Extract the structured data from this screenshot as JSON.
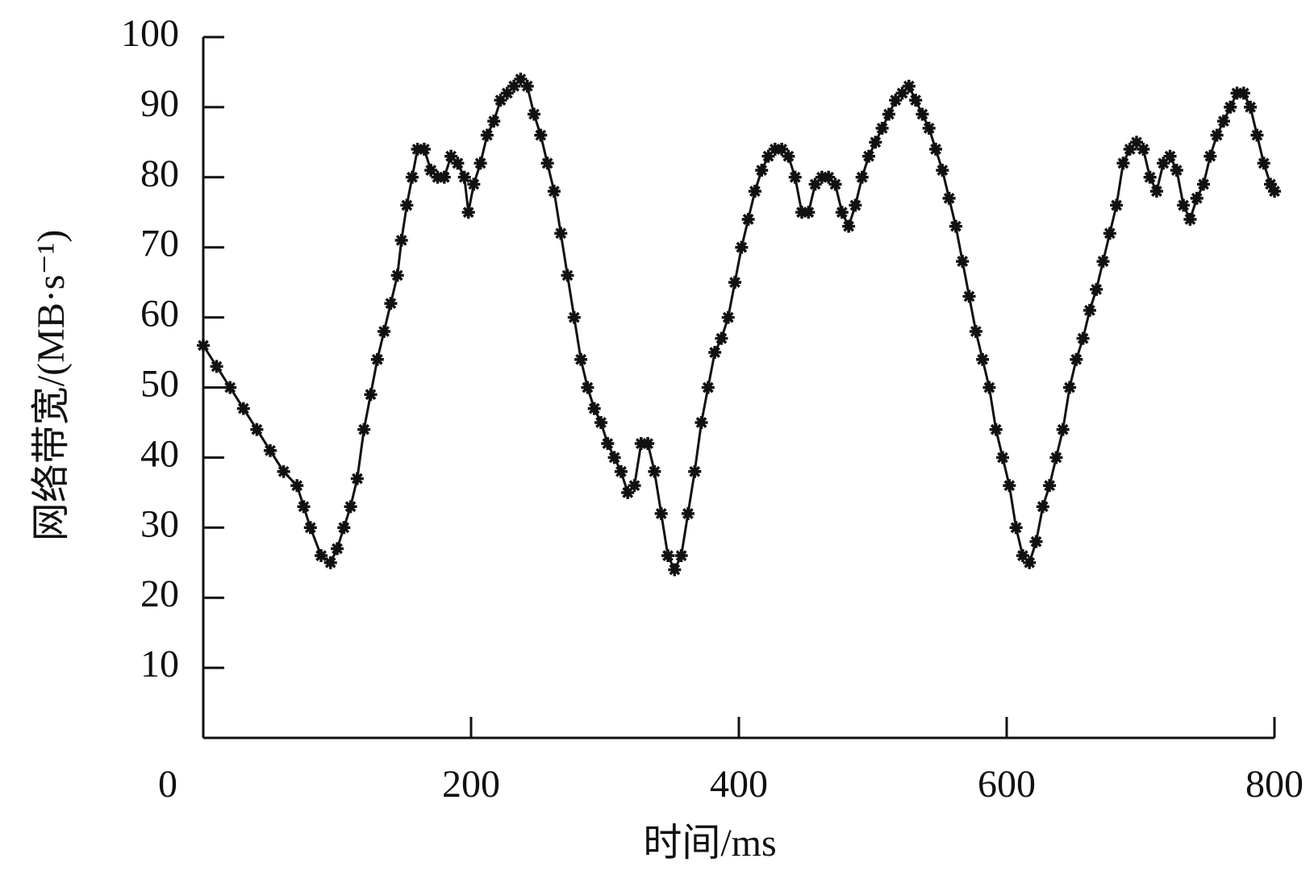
{
  "chart_data": {
    "type": "line",
    "x_label": "时间/ms",
    "y_label": "网络带宽/(MB·s⁻¹)",
    "x": [
      0,
      10,
      20,
      30,
      40,
      50,
      60,
      70,
      75,
      80,
      88,
      95,
      100,
      105,
      110,
      115,
      120,
      125,
      130,
      135,
      140,
      145,
      148,
      152,
      156,
      160,
      165,
      170,
      175,
      180,
      185,
      190,
      195,
      198,
      202,
      207,
      212,
      217,
      222,
      227,
      232,
      237,
      242,
      247,
      252,
      257,
      262,
      267,
      272,
      277,
      282,
      287,
      292,
      297,
      302,
      307,
      312,
      317,
      322,
      327,
      332,
      337,
      342,
      347,
      352,
      357,
      362,
      367,
      372,
      377,
      382,
      387,
      392,
      397,
      402,
      407,
      412,
      417,
      422,
      427,
      432,
      437,
      442,
      447,
      452,
      457,
      462,
      467,
      472,
      477,
      482,
      487,
      492,
      497,
      502,
      507,
      512,
      517,
      522,
      527,
      532,
      537,
      542,
      547,
      552,
      557,
      562,
      567,
      572,
      577,
      582,
      587,
      592,
      597,
      602,
      607,
      612,
      617,
      622,
      627,
      632,
      637,
      642,
      647,
      652,
      657,
      662,
      667,
      672,
      677,
      682,
      687,
      692,
      697,
      702,
      707,
      712,
      717,
      722,
      727,
      732,
      737,
      742,
      747,
      752,
      757,
      762,
      767,
      772,
      777,
      782,
      787,
      792,
      797,
      800
    ],
    "series": [
      {
        "color": "#111111",
        "values": [
          56,
          53,
          50,
          47,
          44,
          41,
          38,
          36,
          33,
          30,
          26,
          25,
          27,
          30,
          33,
          37,
          44,
          49,
          54,
          58,
          62,
          66,
          71,
          76,
          80,
          84,
          84,
          81,
          80,
          80,
          83,
          82,
          80,
          75,
          79,
          82,
          86,
          88,
          91,
          92,
          93,
          94,
          93,
          89,
          86,
          82,
          78,
          72,
          66,
          60,
          54,
          50,
          47,
          45,
          42,
          40,
          38,
          35,
          36,
          42,
          42,
          38,
          32,
          26,
          24,
          26,
          32,
          38,
          45,
          50,
          55,
          57,
          60,
          65,
          70,
          74,
          78,
          81,
          83,
          84,
          84,
          83,
          80,
          75,
          75,
          79,
          80,
          80,
          79,
          75,
          73,
          76,
          80,
          83,
          85,
          87,
          89,
          91,
          92,
          93,
          91,
          89,
          87,
          84,
          81,
          77,
          73,
          68,
          63,
          58,
          54,
          50,
          44,
          40,
          36,
          30,
          26,
          25,
          28,
          33,
          36,
          40,
          44,
          50,
          54,
          57,
          61,
          64,
          68,
          72,
          76,
          82,
          84,
          85,
          84,
          80,
          78,
          82,
          83,
          81,
          76,
          74,
          77,
          79,
          83,
          86,
          88,
          90,
          92,
          92,
          90,
          86,
          82,
          79,
          78
        ]
      }
    ],
    "xlim": [
      0,
      800
    ],
    "xticks": [
      0,
      200,
      400,
      600,
      800
    ],
    "ylim": [
      0,
      100
    ],
    "yticks": [
      10,
      20,
      30,
      40,
      50,
      60,
      70,
      80,
      90,
      100
    ],
    "grid": false
  }
}
